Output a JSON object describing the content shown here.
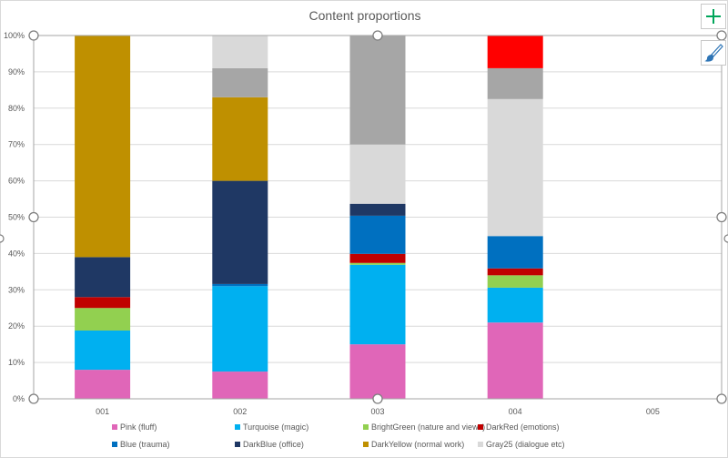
{
  "chart_data": {
    "type": "bar",
    "stacked": true,
    "title": "Content proportions",
    "categories": [
      "001",
      "002",
      "003",
      "004",
      "005"
    ],
    "ylim": [
      0,
      100
    ],
    "ytick_labels": [
      "0%",
      "10%",
      "20%",
      "30%",
      "40%",
      "50%",
      "60%",
      "70%",
      "80%",
      "90%",
      "100%"
    ],
    "grid": true,
    "legend_position": "bottom",
    "series": [
      {
        "name": "Pink (fluff)",
        "color": "#e066b8",
        "values": [
          8,
          7.5,
          15,
          21,
          0
        ]
      },
      {
        "name": "Turquoise (magic)",
        "color": "#00b0f0",
        "values": [
          10.8,
          23.5,
          21.9,
          9.6,
          0
        ]
      },
      {
        "name": "BrightGreen (nature and views)",
        "color": "#92d050",
        "values": [
          6.2,
          0,
          0.5,
          3.4,
          0
        ]
      },
      {
        "name": "DarkRed (emotions)",
        "color": "#c00000",
        "values": [
          3,
          0,
          2.5,
          1.9,
          0
        ]
      },
      {
        "name": "Blue (trauma)",
        "color": "#0070c0",
        "values": [
          0,
          0.6,
          10.5,
          8.9,
          0
        ]
      },
      {
        "name": "DarkBlue (office)",
        "color": "#1f3864",
        "values": [
          11,
          28.4,
          3.3,
          0,
          0
        ]
      },
      {
        "name": "DarkYellow (normal work)",
        "color": "#bf9000",
        "values": [
          61,
          23,
          0,
          0,
          0
        ]
      },
      {
        "name": "Gray25 (dialogue etc)",
        "color": "#d9d9d9",
        "values": [
          0,
          0,
          16.3,
          37.7,
          0
        ]
      },
      {
        "name": "",
        "color": "#a6a6a6",
        "values": [
          0,
          8,
          30,
          8.5,
          0
        ]
      },
      {
        "name": "",
        "color": "#d9d9d9",
        "values": [
          0,
          9,
          0,
          0,
          0
        ]
      },
      {
        "name": "",
        "color": "#ff0000",
        "values": [
          0,
          0,
          0,
          9,
          0
        ]
      }
    ]
  },
  "toolbar": {
    "add_element_icon": "plus-icon",
    "style_icon": "paintbrush-icon",
    "accent_color": "#00a65a"
  }
}
